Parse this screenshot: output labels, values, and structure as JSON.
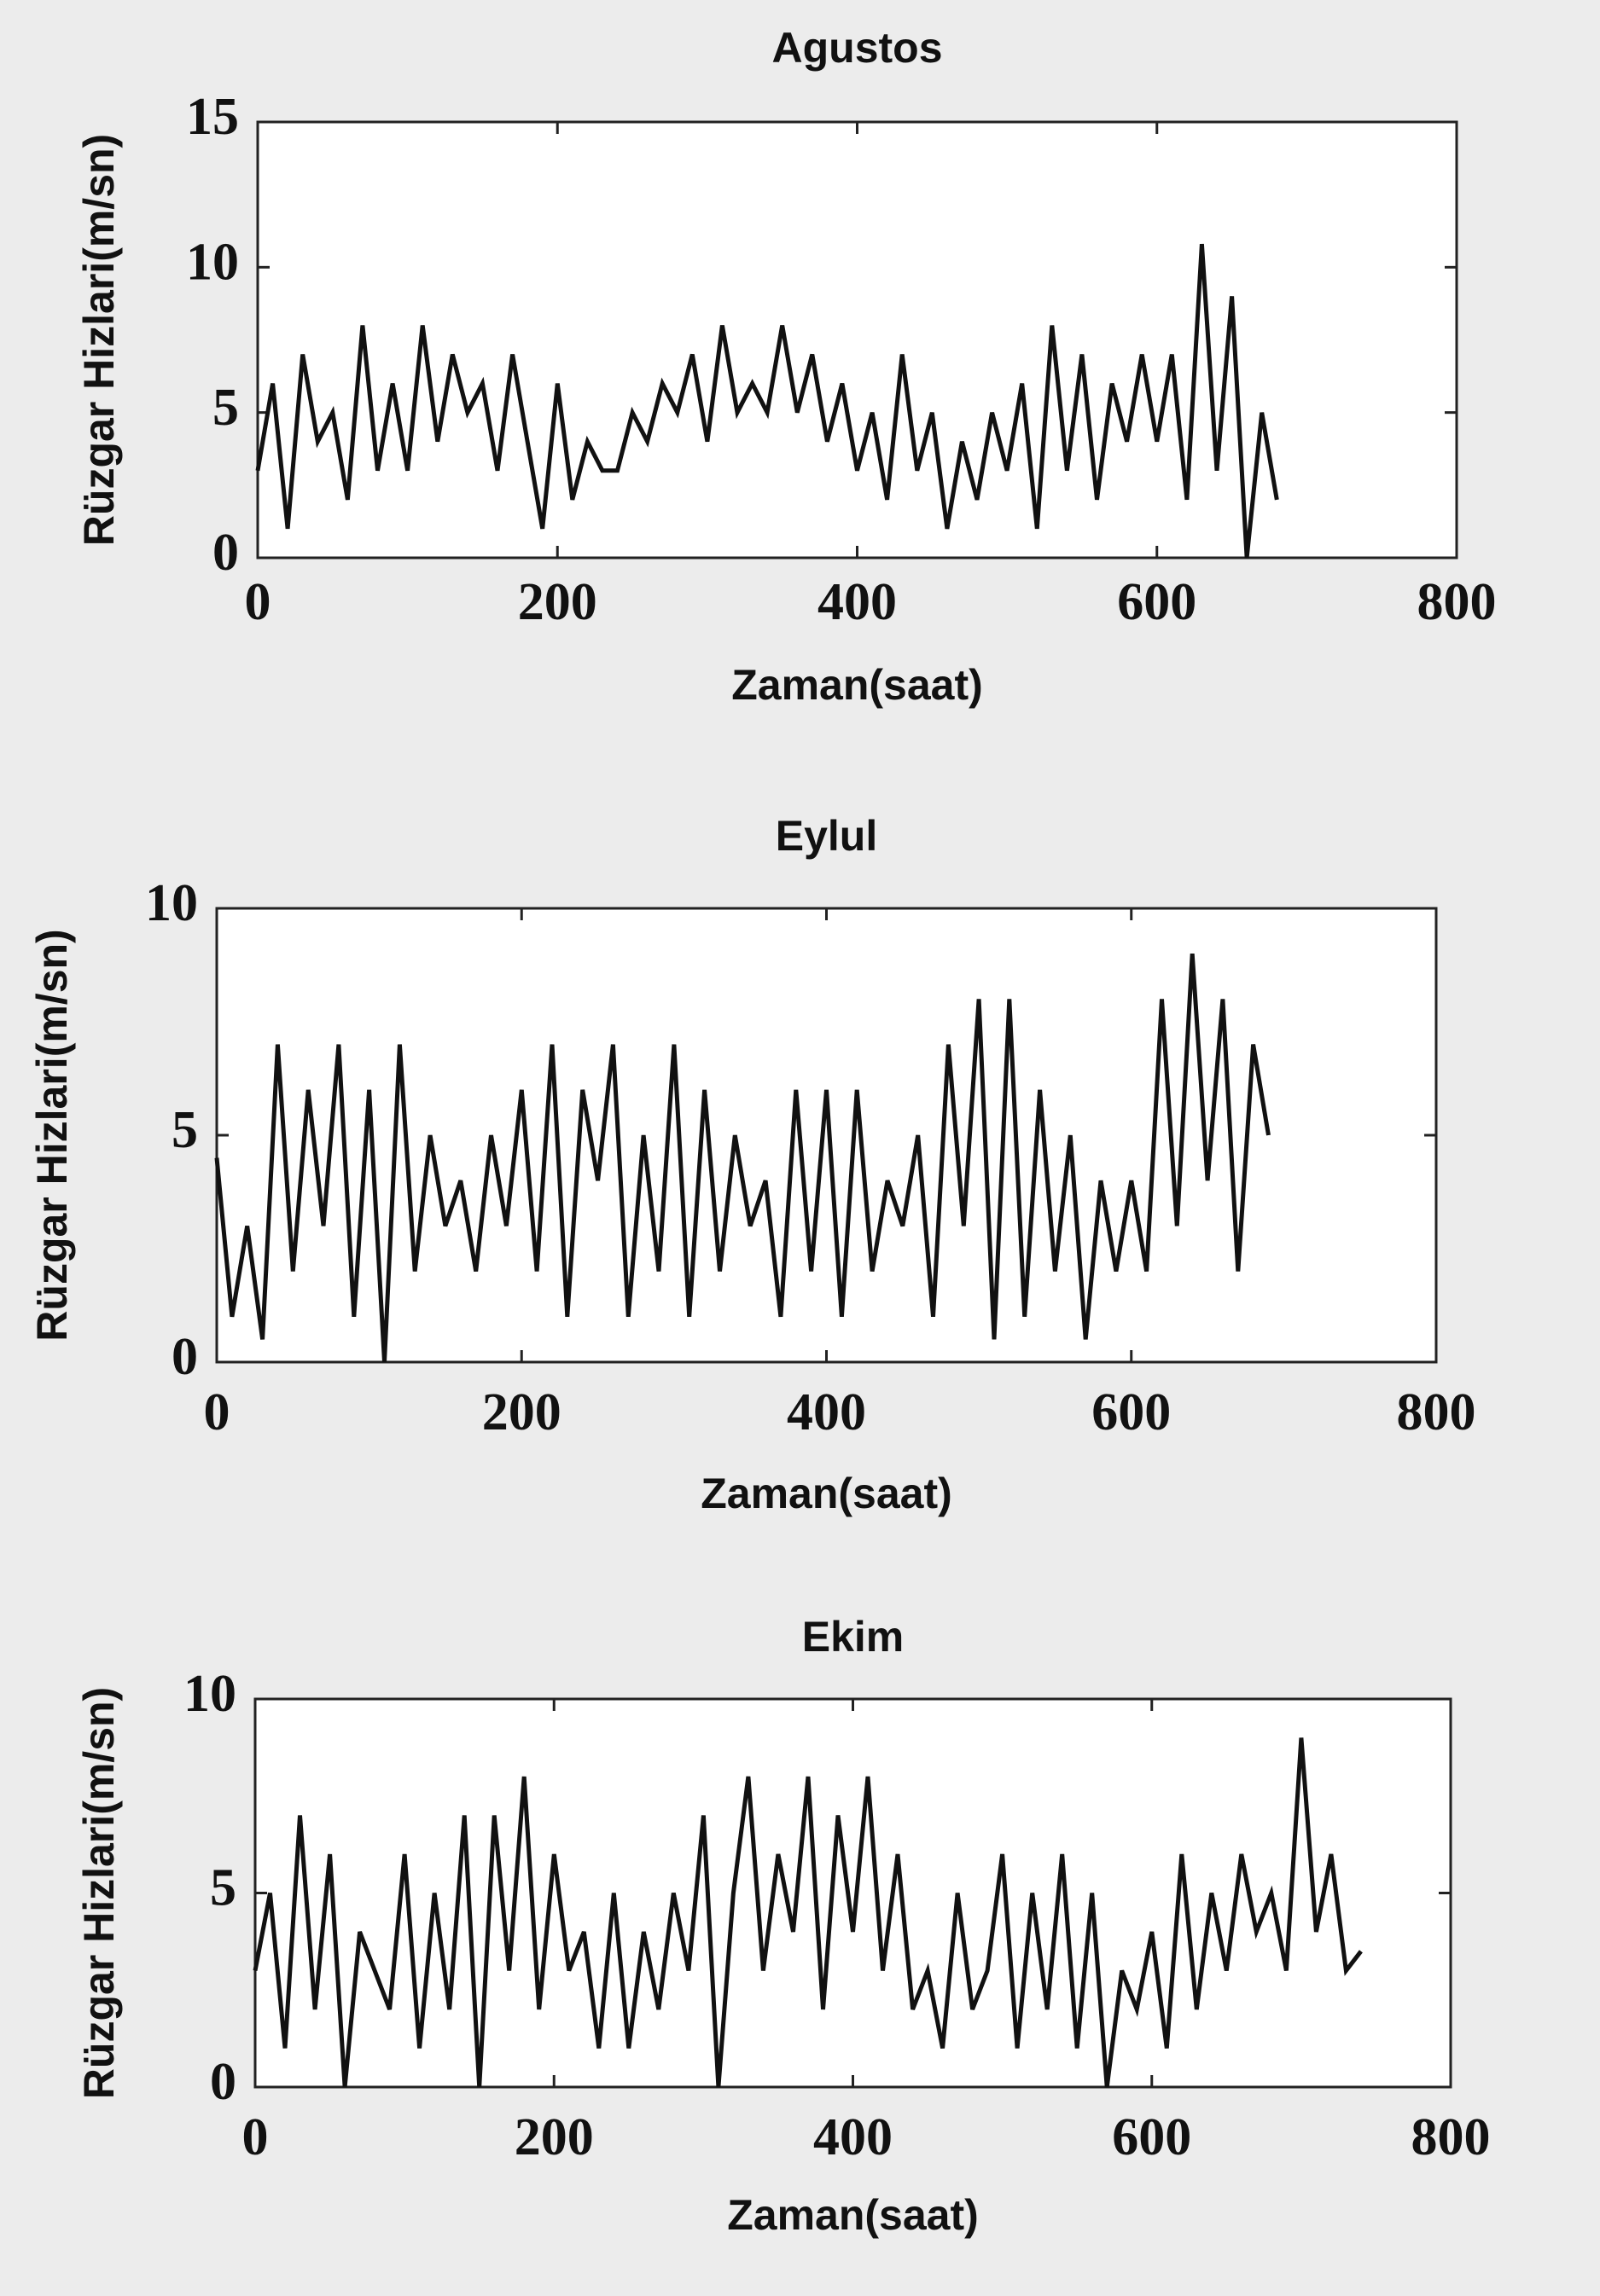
{
  "chart_data": [
    {
      "type": "line",
      "title": "Agustos",
      "xlabel": "Zaman(saat)",
      "ylabel": "Rüzgar Hizlari(m/sn)",
      "color": "#111111",
      "x": [
        0,
        10,
        20,
        30,
        40,
        50,
        60,
        70,
        80,
        90,
        100,
        110,
        120,
        130,
        140,
        150,
        160,
        170,
        180,
        190,
        200,
        210,
        220,
        230,
        240,
        250,
        260,
        270,
        280,
        290,
        300,
        310,
        320,
        330,
        340,
        350,
        360,
        370,
        380,
        390,
        400,
        410,
        420,
        430,
        440,
        450,
        460,
        470,
        480,
        490,
        500,
        510,
        520,
        530,
        540,
        550,
        560,
        570,
        580,
        590,
        600,
        610,
        620,
        630,
        640,
        650,
        660,
        670,
        680
      ],
      "values": [
        3,
        6,
        1,
        7,
        4,
        5,
        2,
        8,
        3,
        6,
        3,
        8,
        4,
        7,
        5,
        6,
        3,
        7,
        4,
        1,
        6,
        2,
        4,
        3,
        3,
        5,
        4,
        6,
        5,
        7,
        4,
        8,
        5,
        6,
        5,
        8,
        5,
        7,
        4,
        6,
        3,
        5,
        2,
        7,
        3,
        5,
        1,
        4,
        2,
        5,
        3,
        6,
        1,
        8,
        3,
        7,
        2,
        6,
        4,
        7,
        4,
        7,
        2,
        10.8,
        3,
        9,
        0,
        5,
        2
      ],
      "xlim": [
        0,
        800
      ],
      "xticks": [
        0,
        200,
        400,
        600,
        800
      ],
      "ylim": [
        0,
        15
      ],
      "yticks": [
        0,
        5,
        10,
        15
      ]
    },
    {
      "type": "line",
      "title": "Eylul",
      "xlabel": "Zaman(saat)",
      "ylabel": "Rüzgar Hizlari(m/sn)",
      "color": "#111111",
      "x": [
        0,
        10,
        20,
        30,
        40,
        50,
        60,
        70,
        80,
        90,
        100,
        110,
        120,
        130,
        140,
        150,
        160,
        170,
        180,
        190,
        200,
        210,
        220,
        230,
        240,
        250,
        260,
        270,
        280,
        290,
        300,
        310,
        320,
        330,
        340,
        350,
        360,
        370,
        380,
        390,
        400,
        410,
        420,
        430,
        440,
        450,
        460,
        470,
        480,
        490,
        500,
        510,
        520,
        530,
        540,
        550,
        560,
        570,
        580,
        590,
        600,
        610,
        620,
        630,
        640,
        650,
        660,
        670,
        680,
        690
      ],
      "values": [
        4.5,
        1,
        3,
        0.5,
        7,
        2,
        6,
        3,
        7,
        1,
        6,
        0,
        7,
        2,
        5,
        3,
        4,
        2,
        5,
        3,
        6,
        2,
        7,
        1,
        6,
        4,
        7,
        1,
        5,
        2,
        7,
        1,
        6,
        2,
        5,
        3,
        4,
        1,
        6,
        2,
        6,
        1,
        6,
        2,
        4,
        3,
        5,
        1,
        7,
        3,
        8,
        0.5,
        8,
        1,
        6,
        2,
        5,
        0.5,
        4,
        2,
        4,
        2,
        8,
        3,
        9,
        4,
        8,
        2,
        7,
        5
      ],
      "xlim": [
        0,
        800
      ],
      "xticks": [
        0,
        200,
        400,
        600,
        800
      ],
      "ylim": [
        0,
        10
      ],
      "yticks": [
        0,
        5,
        10
      ]
    },
    {
      "type": "line",
      "title": "Ekim",
      "xlabel": "Zaman(saat)",
      "ylabel": "Rüzgar Hizlari(m/sn)",
      "color": "#111111",
      "x": [
        0,
        10,
        20,
        30,
        40,
        50,
        60,
        70,
        80,
        90,
        100,
        110,
        120,
        130,
        140,
        150,
        160,
        170,
        180,
        190,
        200,
        210,
        220,
        230,
        240,
        250,
        260,
        270,
        280,
        290,
        300,
        310,
        320,
        330,
        340,
        350,
        360,
        370,
        380,
        390,
        400,
        410,
        420,
        430,
        440,
        450,
        460,
        470,
        480,
        490,
        500,
        510,
        520,
        530,
        540,
        550,
        560,
        570,
        580,
        590,
        600,
        610,
        620,
        630,
        640,
        650,
        660,
        670,
        680,
        690,
        700,
        710,
        720,
        730,
        740
      ],
      "values": [
        3,
        5,
        1,
        7,
        2,
        6,
        0,
        4,
        3,
        2,
        6,
        1,
        5,
        2,
        7,
        0,
        7,
        3,
        8,
        2,
        6,
        3,
        4,
        1,
        5,
        1,
        4,
        2,
        5,
        3,
        7,
        0,
        5,
        8,
        3,
        6,
        4,
        8,
        2,
        7,
        4,
        8,
        3,
        6,
        2,
        3,
        1,
        5,
        2,
        3,
        6,
        1,
        5,
        2,
        6,
        1,
        5,
        0,
        3,
        2,
        4,
        1,
        6,
        2,
        5,
        3,
        6,
        4,
        5,
        3,
        9,
        4,
        6,
        3,
        3.5
      ],
      "xlim": [
        0,
        800
      ],
      "xticks": [
        0,
        200,
        400,
        600,
        800
      ],
      "ylim": [
        0,
        10
      ],
      "yticks": [
        0,
        5,
        10
      ]
    }
  ]
}
